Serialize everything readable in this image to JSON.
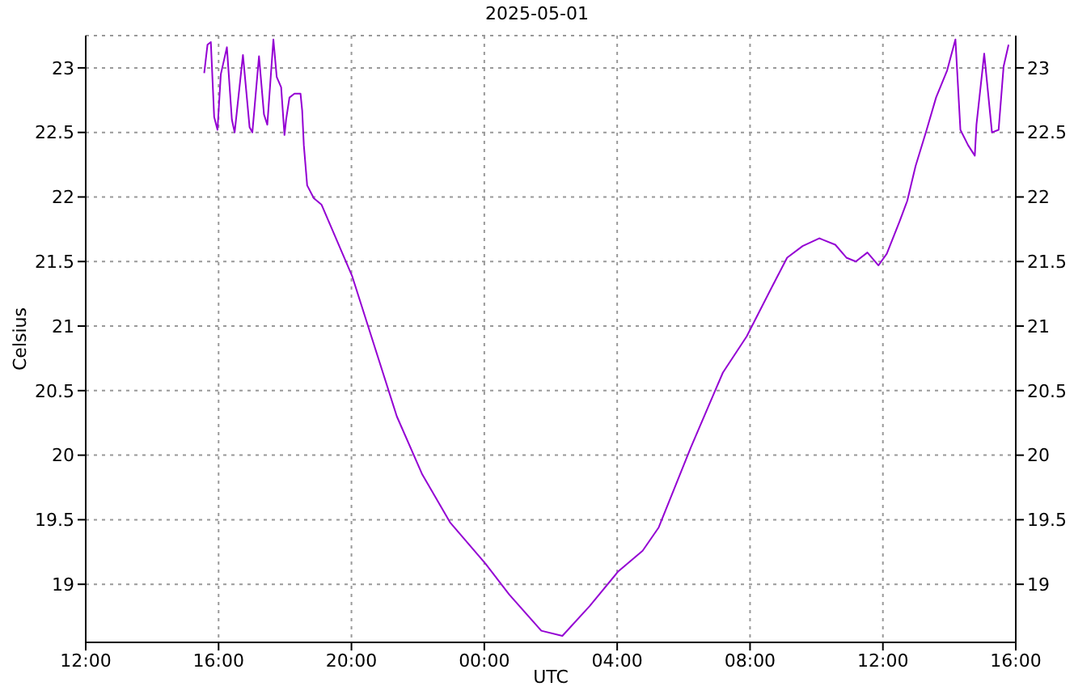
{
  "chart_data": {
    "type": "line",
    "title": "2025-05-01",
    "xlabel": "UTC",
    "ylabel": "Celsius",
    "x": [
      "2025-05-01T15:34",
      "2025-05-01T15:40",
      "2025-05-01T15:46",
      "2025-05-01T15:52",
      "2025-05-01T15:58",
      "2025-05-01T16:04",
      "2025-05-01T16:15",
      "2025-05-01T16:24",
      "2025-05-01T16:29",
      "2025-05-01T16:44",
      "2025-05-01T16:56",
      "2025-05-01T17:01",
      "2025-05-01T17:13",
      "2025-05-01T17:22",
      "2025-05-01T17:28",
      "2025-05-01T17:39",
      "2025-05-01T17:45",
      "2025-05-01T17:53",
      "2025-05-01T17:59",
      "2025-05-01T18:02",
      "2025-05-01T18:08",
      "2025-05-01T18:17",
      "2025-05-01T18:28",
      "2025-05-01T18:31",
      "2025-05-01T18:34",
      "2025-05-01T18:40",
      "2025-05-01T18:52",
      "2025-05-01T19:06",
      "2025-05-01T20:01",
      "2025-05-01T21:22",
      "2025-05-01T22:08",
      "2025-05-01T22:58",
      "2025-05-02T00:02",
      "2025-05-02T00:45",
      "2025-05-02T01:43",
      "2025-05-02T02:21",
      "2025-05-02T03:10",
      "2025-05-02T04:02",
      "2025-05-02T04:46",
      "2025-05-02T05:15",
      "2025-05-02T06:13",
      "2025-05-02T06:56",
      "2025-05-02T07:11",
      "2025-05-02T07:54",
      "2025-05-02T08:38",
      "2025-05-02T09:07",
      "2025-05-02T09:35",
      "2025-05-02T10:05",
      "2025-05-02T10:34",
      "2025-05-02T10:54",
      "2025-05-02T11:11",
      "2025-05-02T11:32",
      "2025-05-02T11:52",
      "2025-05-02T12:07",
      "2025-05-02T12:30",
      "2025-05-02T12:44",
      "2025-05-02T12:59",
      "2025-05-02T13:19",
      "2025-05-02T13:36",
      "2025-05-02T13:56",
      "2025-05-02T14:11",
      "2025-05-02T14:20",
      "2025-05-02T14:34",
      "2025-05-02T14:46",
      "2025-05-02T14:49",
      "2025-05-02T15:03",
      "2025-05-02T15:17",
      "2025-05-02T15:29",
      "2025-05-02T15:38",
      "2025-05-02T15:47"
    ],
    "series": [
      {
        "color": "#9400d3",
        "values": [
          22.96,
          23.18,
          23.2,
          22.62,
          22.52,
          22.95,
          23.16,
          22.6,
          22.5,
          23.1,
          22.54,
          22.5,
          23.09,
          22.64,
          22.56,
          23.22,
          22.93,
          22.85,
          22.48,
          22.6,
          22.77,
          22.8,
          22.8,
          22.67,
          22.4,
          22.09,
          21.99,
          21.94,
          21.39,
          20.3,
          19.85,
          19.48,
          19.16,
          18.92,
          18.64,
          18.6,
          18.83,
          19.1,
          19.26,
          19.44,
          20.06,
          20.49,
          20.64,
          20.92,
          21.29,
          21.53,
          21.62,
          21.68,
          21.63,
          21.53,
          21.5,
          21.57,
          21.47,
          21.56,
          21.81,
          21.97,
          22.24,
          22.52,
          22.77,
          22.98,
          23.22,
          22.52,
          22.4,
          22.32,
          22.56,
          23.11,
          22.5,
          22.52,
          23.01,
          23.18
        ]
      }
    ],
    "xlim": [
      "2025-05-01T12:00",
      "2025-05-02T16:00"
    ],
    "xticks": [
      {
        "value": "2025-05-01T12:00",
        "label": "12:00"
      },
      {
        "value": "2025-05-01T16:00",
        "label": "16:00"
      },
      {
        "value": "2025-05-01T20:00",
        "label": "20:00"
      },
      {
        "value": "2025-05-02T00:00",
        "label": "00:00"
      },
      {
        "value": "2025-05-02T04:00",
        "label": "04:00"
      },
      {
        "value": "2025-05-02T08:00",
        "label": "08:00"
      },
      {
        "value": "2025-05-02T12:00",
        "label": "12:00"
      },
      {
        "value": "2025-05-02T16:00",
        "label": "16:00"
      }
    ],
    "ylim": [
      18.55,
      23.25
    ],
    "yticks": [
      19,
      19.5,
      20,
      20.5,
      21,
      21.5,
      22,
      22.5,
      23
    ],
    "y2lim": [
      18.55,
      23.25
    ],
    "y2ticks": [
      19,
      19.5,
      20,
      20.5,
      21,
      21.5,
      22,
      22.5,
      23
    ],
    "grid": true,
    "marker": "none",
    "line_style": "solid"
  }
}
